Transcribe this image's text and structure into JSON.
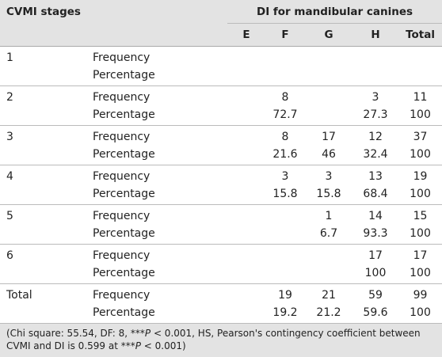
{
  "table": {
    "header": {
      "stage": "CVMI stages",
      "group": "DI for mandibular canines",
      "columns": [
        "E",
        "F",
        "G",
        "H",
        "Total"
      ]
    },
    "measures": [
      "Frequency",
      "Percentage"
    ],
    "rows": [
      {
        "stage": "1",
        "values": [
          [
            null,
            null,
            null,
            null,
            null
          ],
          [
            null,
            null,
            null,
            null,
            null
          ]
        ]
      },
      {
        "stage": "2",
        "values": [
          [
            null,
            8,
            null,
            3,
            11
          ],
          [
            null,
            72.7,
            null,
            27.3,
            100
          ]
        ]
      },
      {
        "stage": "3",
        "values": [
          [
            null,
            8,
            17,
            12,
            37
          ],
          [
            null,
            21.6,
            46,
            32.4,
            100
          ]
        ]
      },
      {
        "stage": "4",
        "values": [
          [
            null,
            3,
            3,
            13,
            19
          ],
          [
            null,
            15.8,
            15.8,
            68.4,
            100
          ]
        ]
      },
      {
        "stage": "5",
        "values": [
          [
            null,
            null,
            1,
            14,
            15
          ],
          [
            null,
            null,
            6.7,
            93.3,
            100
          ]
        ]
      },
      {
        "stage": "6",
        "values": [
          [
            null,
            null,
            null,
            17,
            17
          ],
          [
            null,
            null,
            null,
            100,
            100
          ]
        ]
      },
      {
        "stage": "Total",
        "values": [
          [
            null,
            19,
            21,
            59,
            99
          ],
          [
            null,
            19.2,
            21.2,
            59.6,
            100
          ]
        ]
      }
    ],
    "footnote": [
      "(Chi square: 55.54, DF: 8, ***",
      "P",
      " < 0.001, HS, Pearson's contingency coefficient between CVMI and DI is 0.599 at ***",
      "P",
      " < 0.001)"
    ]
  }
}
